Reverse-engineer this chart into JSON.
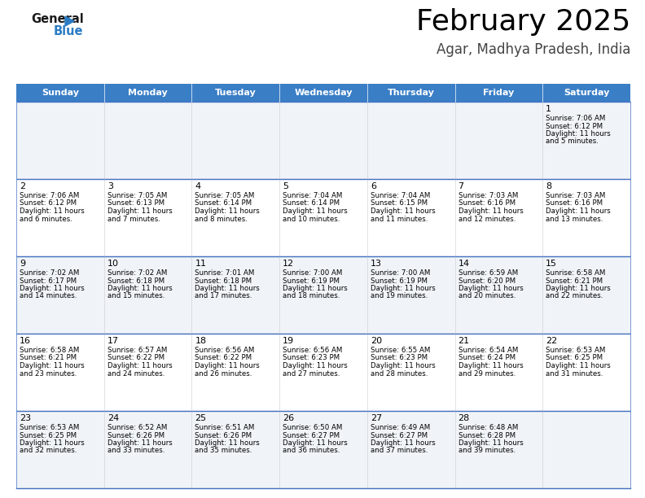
{
  "title": "February 2025",
  "subtitle": "Agar, Madhya Pradesh, India",
  "header_color": "#3A7EC6",
  "header_text_color": "#FFFFFF",
  "cell_bg_row0": "#F0F4F8",
  "cell_bg_row1": "#FFFFFF",
  "cell_bg_row2": "#F0F4F8",
  "cell_bg_row3": "#FFFFFF",
  "cell_bg_row4": "#F0F4F8",
  "border_color": "#4472C4",
  "text_color": "#000000",
  "days_of_week": [
    "Sunday",
    "Monday",
    "Tuesday",
    "Wednesday",
    "Thursday",
    "Friday",
    "Saturday"
  ],
  "calendar_data": [
    [
      null,
      null,
      null,
      null,
      null,
      null,
      {
        "day": "1",
        "sunrise": "7:06 AM",
        "sunset": "6:12 PM",
        "daylight_extra": "5 minutes."
      }
    ],
    [
      {
        "day": "2",
        "sunrise": "7:06 AM",
        "sunset": "6:12 PM",
        "daylight_extra": "6 minutes."
      },
      {
        "day": "3",
        "sunrise": "7:05 AM",
        "sunset": "6:13 PM",
        "daylight_extra": "7 minutes."
      },
      {
        "day": "4",
        "sunrise": "7:05 AM",
        "sunset": "6:14 PM",
        "daylight_extra": "8 minutes."
      },
      {
        "day": "5",
        "sunrise": "7:04 AM",
        "sunset": "6:14 PM",
        "daylight_extra": "10 minutes."
      },
      {
        "day": "6",
        "sunrise": "7:04 AM",
        "sunset": "6:15 PM",
        "daylight_extra": "11 minutes."
      },
      {
        "day": "7",
        "sunrise": "7:03 AM",
        "sunset": "6:16 PM",
        "daylight_extra": "12 minutes."
      },
      {
        "day": "8",
        "sunrise": "7:03 AM",
        "sunset": "6:16 PM",
        "daylight_extra": "13 minutes."
      }
    ],
    [
      {
        "day": "9",
        "sunrise": "7:02 AM",
        "sunset": "6:17 PM",
        "daylight_extra": "14 minutes."
      },
      {
        "day": "10",
        "sunrise": "7:02 AM",
        "sunset": "6:18 PM",
        "daylight_extra": "15 minutes."
      },
      {
        "day": "11",
        "sunrise": "7:01 AM",
        "sunset": "6:18 PM",
        "daylight_extra": "17 minutes."
      },
      {
        "day": "12",
        "sunrise": "7:00 AM",
        "sunset": "6:19 PM",
        "daylight_extra": "18 minutes."
      },
      {
        "day": "13",
        "sunrise": "7:00 AM",
        "sunset": "6:19 PM",
        "daylight_extra": "19 minutes."
      },
      {
        "day": "14",
        "sunrise": "6:59 AM",
        "sunset": "6:20 PM",
        "daylight_extra": "20 minutes."
      },
      {
        "day": "15",
        "sunrise": "6:58 AM",
        "sunset": "6:21 PM",
        "daylight_extra": "22 minutes."
      }
    ],
    [
      {
        "day": "16",
        "sunrise": "6:58 AM",
        "sunset": "6:21 PM",
        "daylight_extra": "23 minutes."
      },
      {
        "day": "17",
        "sunrise": "6:57 AM",
        "sunset": "6:22 PM",
        "daylight_extra": "24 minutes."
      },
      {
        "day": "18",
        "sunrise": "6:56 AM",
        "sunset": "6:22 PM",
        "daylight_extra": "26 minutes."
      },
      {
        "day": "19",
        "sunrise": "6:56 AM",
        "sunset": "6:23 PM",
        "daylight_extra": "27 minutes."
      },
      {
        "day": "20",
        "sunrise": "6:55 AM",
        "sunset": "6:23 PM",
        "daylight_extra": "28 minutes."
      },
      {
        "day": "21",
        "sunrise": "6:54 AM",
        "sunset": "6:24 PM",
        "daylight_extra": "29 minutes."
      },
      {
        "day": "22",
        "sunrise": "6:53 AM",
        "sunset": "6:25 PM",
        "daylight_extra": "31 minutes."
      }
    ],
    [
      {
        "day": "23",
        "sunrise": "6:53 AM",
        "sunset": "6:25 PM",
        "daylight_extra": "32 minutes."
      },
      {
        "day": "24",
        "sunrise": "6:52 AM",
        "sunset": "6:26 PM",
        "daylight_extra": "33 minutes."
      },
      {
        "day": "25",
        "sunrise": "6:51 AM",
        "sunset": "6:26 PM",
        "daylight_extra": "35 minutes."
      },
      {
        "day": "26",
        "sunrise": "6:50 AM",
        "sunset": "6:27 PM",
        "daylight_extra": "36 minutes."
      },
      {
        "day": "27",
        "sunrise": "6:49 AM",
        "sunset": "6:27 PM",
        "daylight_extra": "37 minutes."
      },
      {
        "day": "28",
        "sunrise": "6:48 AM",
        "sunset": "6:28 PM",
        "daylight_extra": "39 minutes."
      },
      null
    ]
  ],
  "logo_general_color": "#1a1a1a",
  "logo_blue_color": "#2B7CC4",
  "fig_width": 7.92,
  "fig_height": 6.12,
  "dpi": 100
}
